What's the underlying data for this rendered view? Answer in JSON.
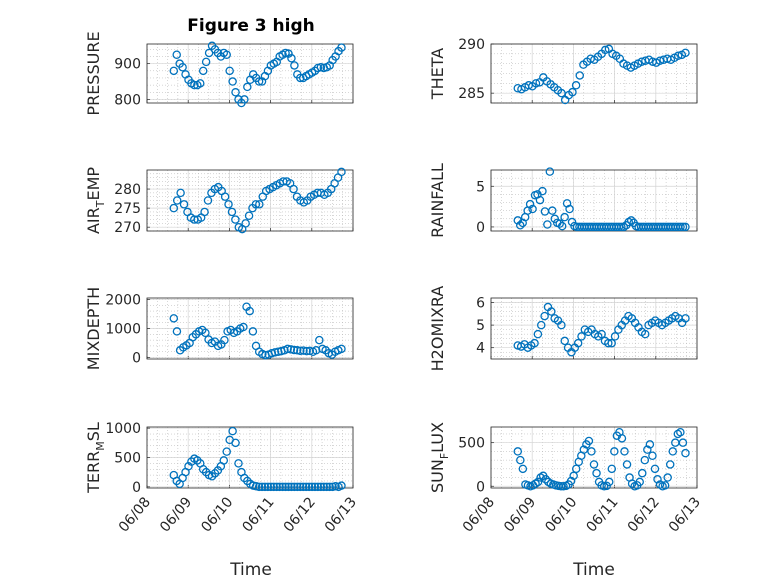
{
  "figure": {
    "title": "Figure 3 high",
    "x_label_left": "Time",
    "x_label_right": "Time"
  },
  "colors": {
    "marker": "#0072BD",
    "axes": "#262626",
    "grid": "#b0b0b0"
  },
  "chart_data": [
    {
      "type": "scatter",
      "panel": "PRESSURE",
      "ylabel": "PRESSURE",
      "ylabel_sub": "",
      "ylabel_tail": "",
      "ylim": [
        790,
        955
      ],
      "yticks": [
        800,
        900
      ],
      "xlim": [
        0,
        5
      ],
      "xticks": [
        "06/08",
        "06/09",
        "06/10",
        "06/11",
        "06/12",
        "06/13"
      ],
      "y": [
        880,
        925,
        900,
        890,
        870,
        855,
        845,
        840,
        840,
        845,
        880,
        905,
        930,
        950,
        940,
        930,
        920,
        930,
        925,
        880,
        850,
        820,
        800,
        790,
        800,
        835,
        855,
        870,
        860,
        850,
        850,
        865,
        880,
        895,
        900,
        905,
        920,
        925,
        930,
        928,
        915,
        895,
        870,
        860,
        860,
        865,
        870,
        875,
        880,
        888,
        890,
        888,
        890,
        895,
        910,
        920,
        935,
        945
      ]
    },
    {
      "type": "scatter",
      "panel": "THETA",
      "ylabel": "THETA",
      "ylabel_sub": "",
      "ylabel_tail": "",
      "ylim": [
        284,
        290
      ],
      "yticks": [
        285,
        290
      ],
      "xlim": [
        0,
        5
      ],
      "xticks": [
        "06/08",
        "06/09",
        "06/10",
        "06/11",
        "06/12",
        "06/13"
      ],
      "y": [
        285.5,
        285.4,
        285.6,
        285.8,
        285.7,
        286,
        286.1,
        286.6,
        286.2,
        285.9,
        285.6,
        285.3,
        285,
        284.3,
        284.8,
        285.1,
        285.8,
        286.8,
        287.9,
        288.2,
        288.5,
        288.4,
        288.7,
        289,
        289.4,
        289.5,
        289,
        288.8,
        288.5,
        288,
        287.8,
        287.6,
        287.8,
        288,
        288.2,
        288.3,
        288.4,
        288.2,
        288.1,
        288.3,
        288.4,
        288.5,
        288.4,
        288.6,
        288.8,
        288.9,
        289.1
      ]
    },
    {
      "type": "scatter",
      "panel": "AIR_TEMP",
      "ylabel": "AIR",
      "ylabel_sub": "T",
      "ylabel_tail": "EMP",
      "ylim": [
        269,
        285
      ],
      "yticks": [
        270,
        275,
        280
      ],
      "xlim": [
        0,
        5
      ],
      "xticks": [
        "06/08",
        "06/09",
        "06/10",
        "06/11",
        "06/12",
        "06/13"
      ],
      "y": [
        275,
        277,
        279,
        276,
        274,
        272.5,
        272,
        272,
        272.5,
        274,
        277,
        279,
        280,
        280.5,
        279.5,
        278,
        276,
        274,
        272,
        270,
        269.5,
        271,
        273,
        275,
        276,
        276,
        278,
        279.5,
        280,
        280.5,
        281,
        281.5,
        282,
        282,
        281.5,
        280,
        278,
        277,
        276.5,
        277,
        278,
        278.5,
        279,
        279,
        278.5,
        279,
        280,
        281.5,
        283,
        284.5
      ]
    },
    {
      "type": "scatter",
      "panel": "RAINFALL",
      "ylabel": "RAINFALL",
      "ylabel_sub": "",
      "ylabel_tail": "",
      "ylim": [
        -0.5,
        7
      ],
      "yticks": [
        0,
        5
      ],
      "xlim": [
        0,
        5
      ],
      "xticks": [
        "06/08",
        "06/09",
        "06/10",
        "06/11",
        "06/12",
        "06/13"
      ],
      "y": [
        0.8,
        0.2,
        0.5,
        1.2,
        2,
        2.8,
        2.2,
        3.9,
        4,
        3.3,
        4.4,
        1.9,
        0.3,
        6.8,
        2,
        1,
        0.5,
        0.4,
        0.1,
        1.2,
        2.9,
        2.2,
        0.6,
        0.1,
        0,
        0,
        0,
        0,
        0,
        0,
        0,
        0,
        0,
        0,
        0,
        0,
        0,
        0,
        0,
        0,
        0,
        0,
        0,
        0,
        0.2,
        0.6,
        0.8,
        0.5,
        0.1,
        0,
        0,
        0,
        0,
        0,
        0,
        0,
        0,
        0,
        0,
        0,
        0,
        0,
        0,
        0,
        0,
        0,
        0,
        0,
        0
      ]
    },
    {
      "type": "scatter",
      "panel": "MIXDEPTH",
      "ylabel": "MIXDEPTH",
      "ylabel_sub": "",
      "ylabel_tail": "",
      "ylim": [
        -50,
        2050
      ],
      "yticks": [
        0,
        1000,
        2000
      ],
      "xlim": [
        0,
        5
      ],
      "xticks": [
        "06/08",
        "06/09",
        "06/10",
        "06/11",
        "06/12",
        "06/13"
      ],
      "y": [
        1350,
        900,
        250,
        350,
        420,
        500,
        700,
        800,
        900,
        950,
        850,
        620,
        500,
        550,
        400,
        450,
        600,
        900,
        950,
        850,
        900,
        1000,
        1050,
        1750,
        1600,
        900,
        400,
        200,
        120,
        80,
        100,
        150,
        180,
        200,
        220,
        250,
        300,
        280,
        260,
        250,
        230,
        240,
        220,
        230,
        200,
        250,
        600,
        300,
        250,
        150,
        100,
        200,
        250,
        300
      ]
    },
    {
      "type": "scatter",
      "panel": "H2OMIXRA",
      "ylabel": "H2OMIXRA",
      "ylabel_sub": "",
      "ylabel_tail": "",
      "ylim": [
        3.5,
        6.2
      ],
      "yticks": [
        4,
        5,
        6
      ],
      "xlim": [
        0,
        5
      ],
      "xticks": [
        "06/08",
        "06/09",
        "06/10",
        "06/11",
        "06/12",
        "06/13"
      ],
      "y": [
        4.1,
        4.05,
        4.15,
        4,
        4.1,
        4.2,
        4.6,
        5,
        5.4,
        5.8,
        5.6,
        5.3,
        5.2,
        5,
        4.3,
        4,
        3.8,
        4,
        4.2,
        4.5,
        4.8,
        4.7,
        4.8,
        4.6,
        4.5,
        4.6,
        4.3,
        4.2,
        4.2,
        4.5,
        4.8,
        5,
        5.2,
        5.4,
        5.3,
        5.1,
        4.9,
        4.7,
        4.6,
        5,
        5.1,
        5.2,
        5.1,
        5,
        5.1,
        5.2,
        5.3,
        5.4,
        5.3,
        5.1,
        5.3
      ]
    },
    {
      "type": "scatter",
      "panel": "TERR_MSL",
      "ylabel": "TERR",
      "ylabel_sub": "M",
      "ylabel_tail": "SL",
      "ylim": [
        -20,
        1020
      ],
      "yticks": [
        0,
        500,
        1000
      ],
      "xlim": [
        0,
        5
      ],
      "xticks": [
        "06/08",
        "06/09",
        "06/10",
        "06/11",
        "06/12",
        "06/13"
      ],
      "y": [
        200,
        100,
        50,
        150,
        250,
        350,
        430,
        480,
        450,
        400,
        300,
        250,
        200,
        180,
        230,
        280,
        350,
        450,
        600,
        800,
        950,
        750,
        400,
        250,
        150,
        100,
        50,
        20,
        10,
        0,
        0,
        0,
        0,
        0,
        0,
        0,
        0,
        0,
        0,
        0,
        0,
        0,
        0,
        0,
        0,
        0,
        0,
        0,
        0,
        0,
        0,
        0,
        0,
        0,
        0,
        10,
        0,
        20
      ]
    },
    {
      "type": "scatter",
      "panel": "SUN_FLUX",
      "ylabel": "SUN",
      "ylabel_sub": "F",
      "ylabel_tail": "LUX",
      "ylim": [
        -20,
        680
      ],
      "yticks": [
        0,
        500
      ],
      "xlim": [
        0,
        5
      ],
      "xticks": [
        "06/08",
        "06/09",
        "06/10",
        "06/11",
        "06/12",
        "06/13"
      ],
      "y": [
        400,
        300,
        200,
        20,
        10,
        0,
        10,
        30,
        50,
        100,
        120,
        80,
        50,
        30,
        20,
        10,
        5,
        0,
        0,
        5,
        20,
        60,
        120,
        200,
        280,
        350,
        420,
        480,
        520,
        400,
        250,
        150,
        50,
        10,
        0,
        5,
        50,
        200,
        400,
        580,
        620,
        550,
        400,
        250,
        100,
        30,
        0,
        10,
        50,
        150,
        300,
        420,
        480,
        350,
        200,
        80,
        20,
        0,
        10,
        100,
        250,
        400,
        500,
        600,
        620,
        500,
        380
      ]
    }
  ]
}
